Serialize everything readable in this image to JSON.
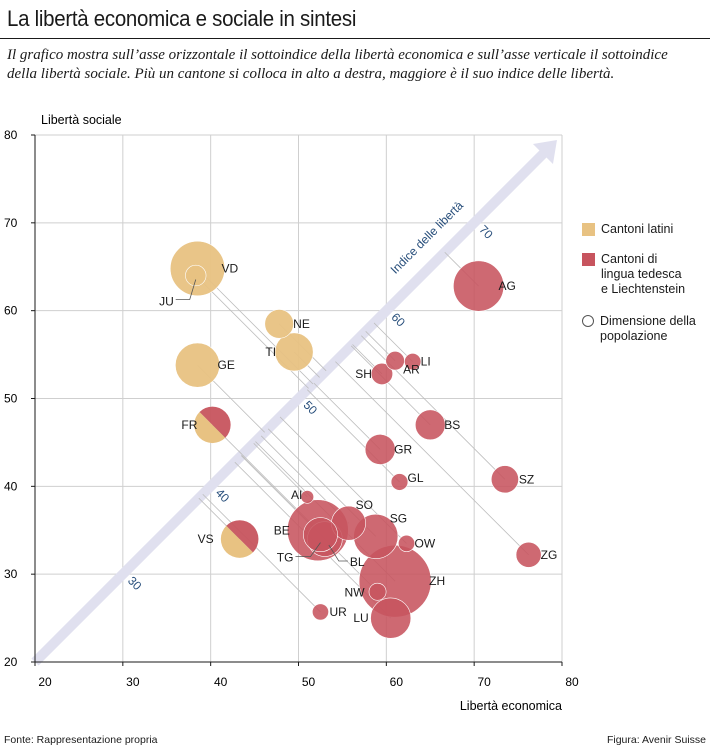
{
  "title": "La libertà economica e sociale in sintesi",
  "subtitle": "Il grafico mostra sull’asse orizzontale il sottoindice della libertà economica e sull’asse verticale il sottoindice della libertà sociale. Più un cantone si colloca in alto a destra, maggiore è il suo indice delle libertà.",
  "footer": {
    "source": "Fonte: Rappresentazione propria",
    "credit": "Figura: Avenir Suisse"
  },
  "legend": {
    "latin": "Cantoni latini",
    "german": "Cantoni di\nlingua tedesca\ne Liechtenstein",
    "size": "Dimensione della\npopolazione"
  },
  "colors": {
    "latin": "#e8c282",
    "german": "#c7545e",
    "arrow": "#e0e0ef",
    "diag_label": "#264d7a",
    "grid": "#cfcfcf"
  },
  "chart_data": {
    "type": "scatter",
    "xlabel": "Libertà economica",
    "ylabel": "Libertà sociale",
    "xlim": [
      20,
      80
    ],
    "ylim": [
      20,
      80
    ],
    "xticks": [
      20,
      30,
      40,
      50,
      60,
      70,
      80
    ],
    "yticks": [
      20,
      30,
      40,
      50,
      60,
      70,
      80
    ],
    "diagonal_label": "Indice delle libertà",
    "diagonal_ticks": [
      30,
      40,
      50,
      60,
      70
    ],
    "points": [
      {
        "id": "VD",
        "x": 38.5,
        "y": 64.8,
        "group": "latin",
        "population": 800000
      },
      {
        "id": "JU",
        "x": 38.3,
        "y": 64.0,
        "group": "latin",
        "population": 73000
      },
      {
        "id": "NE",
        "x": 47.8,
        "y": 58.5,
        "group": "latin",
        "population": 177000
      },
      {
        "id": "TI",
        "x": 49.5,
        "y": 55.3,
        "group": "latin",
        "population": 352000
      },
      {
        "id": "GE",
        "x": 38.5,
        "y": 53.8,
        "group": "latin",
        "population": 500000
      },
      {
        "id": "FR",
        "x": 40.2,
        "y": 47.0,
        "group": "latin_german",
        "population": 315000
      },
      {
        "id": "VS",
        "x": 43.3,
        "y": 34.0,
        "group": "latin_german",
        "population": 340000
      },
      {
        "id": "AG",
        "x": 70.5,
        "y": 62.8,
        "group": "german",
        "population": 670000
      },
      {
        "id": "SH",
        "x": 59.5,
        "y": 52.8,
        "group": "german",
        "population": 82000
      },
      {
        "id": "AR",
        "x": 61.0,
        "y": 54.3,
        "group": "german",
        "population": 55000
      },
      {
        "id": "LI",
        "x": 63.0,
        "y": 54.2,
        "group": "german",
        "population": 38000
      },
      {
        "id": "BS",
        "x": 65.0,
        "y": 47.0,
        "group": "german",
        "population": 195000
      },
      {
        "id": "GR",
        "x": 59.3,
        "y": 44.2,
        "group": "german",
        "population": 198000
      },
      {
        "id": "GL",
        "x": 61.5,
        "y": 40.5,
        "group": "german",
        "population": 40000
      },
      {
        "id": "SZ",
        "x": 73.5,
        "y": 40.8,
        "group": "german",
        "population": 155000
      },
      {
        "id": "AI",
        "x": 51.0,
        "y": 38.8,
        "group": "german",
        "population": 16000
      },
      {
        "id": "SO",
        "x": 55.7,
        "y": 35.8,
        "group": "german",
        "population": 270000
      },
      {
        "id": "SG",
        "x": 58.8,
        "y": 34.3,
        "group": "german",
        "population": 500000
      },
      {
        "id": "OW",
        "x": 62.3,
        "y": 33.5,
        "group": "german",
        "population": 37000
      },
      {
        "id": "BE",
        "x": 52.2,
        "y": 35.0,
        "group": "german",
        "population": 1030000
      },
      {
        "id": "TG",
        "x": 52.5,
        "y": 34.5,
        "group": "german",
        "population": 270000
      },
      {
        "id": "BL",
        "x": 53.0,
        "y": 34.0,
        "group": "german",
        "population": 285000
      },
      {
        "id": "ZG",
        "x": 76.2,
        "y": 32.2,
        "group": "german",
        "population": 125000
      },
      {
        "id": "ZH",
        "x": 61.0,
        "y": 29.2,
        "group": "german",
        "population": 1480000
      },
      {
        "id": "NW",
        "x": 59.0,
        "y": 28.0,
        "group": "german",
        "population": 42000
      },
      {
        "id": "LU",
        "x": 60.5,
        "y": 25.0,
        "group": "german",
        "population": 400000
      },
      {
        "id": "UR",
        "x": 52.5,
        "y": 25.7,
        "group": "german",
        "population": 36000
      }
    ]
  }
}
